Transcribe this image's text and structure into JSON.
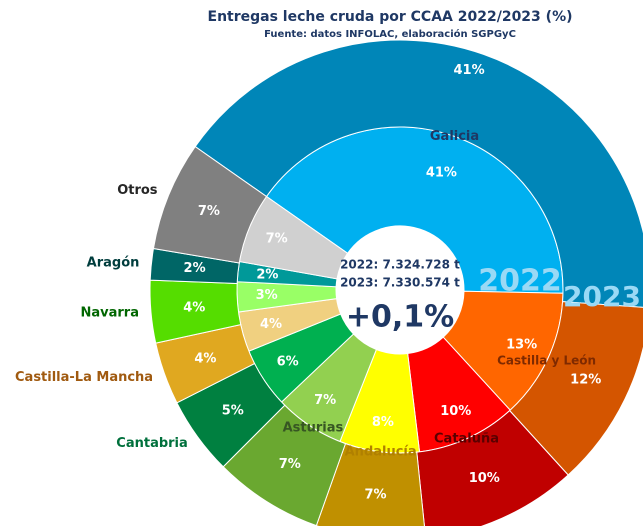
{
  "chart_data": {
    "type": "donut",
    "title": "Entregas leche cruda por CCAA 2022/2023  (%)",
    "subtitle": "Fuente: datos INFOLAC, elaboración SGPGyC",
    "categories": [
      "Galicia",
      "Castilla y León",
      "Cataluña",
      "Andalucía",
      "Asturias",
      "Cantabria",
      "Castilla-La Mancha",
      "Navarra",
      "Aragón",
      "Otros"
    ],
    "name_colors": [
      "#1f3864",
      "#7f2a00",
      "#5a0000",
      "#b08000",
      "#375623",
      "#00703c",
      "#a05a10",
      "#006600",
      "#003d3d",
      "#262626"
    ],
    "series": [
      {
        "name": "2022",
        "colors": [
          "#00b0f0",
          "#ff6600",
          "#ff0000",
          "#ffff00",
          "#92d050",
          "#00b050",
          "#f0d080",
          "#99ff66",
          "#009999",
          "#d0d0d0"
        ],
        "values": [
          41,
          13,
          10,
          8,
          7,
          6,
          4,
          3,
          2,
          7
        ],
        "value_labels": [
          "41%",
          "13%",
          "10%",
          "8%",
          "7%",
          "6%",
          "4%",
          "3%",
          "2%",
          "7%"
        ]
      },
      {
        "name": "2023",
        "colors": [
          "#0086b8",
          "#d45500",
          "#c00000",
          "#c09000",
          "#6aa830",
          "#008040",
          "#e0a820",
          "#55dd00",
          "#006666",
          "#808080"
        ],
        "values": [
          41,
          12,
          10,
          7,
          7,
          5,
          4,
          4,
          2,
          7
        ],
        "value_labels": [
          "41%",
          "12%",
          "10%",
          "7%",
          "7%",
          "5%",
          "4%",
          "4%",
          "2%",
          "7%"
        ]
      }
    ],
    "center_lines": [
      "2022: 7.324.728 t",
      "2023: 7.330.574 t"
    ],
    "center_change": "+0,1%"
  }
}
